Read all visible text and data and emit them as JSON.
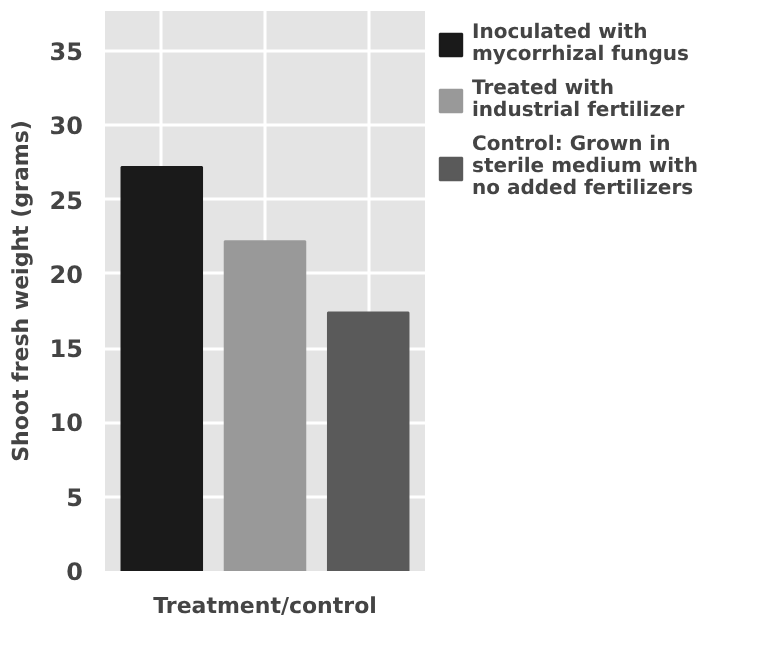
{
  "chart_data": {
    "type": "bar",
    "xlabel": "Treatment/control",
    "ylabel": "Shoot fresh weight (grams)",
    "categories": [
      null,
      null,
      null
    ],
    "series": [
      {
        "name": "Inoculated with mycorrhizal fungus",
        "color": "#1a1a1a",
        "values": [
          27.2,
          null,
          null
        ]
      },
      {
        "name": "Treated with industrial fertilizer",
        "color": "#999999",
        "values": [
          null,
          22.2,
          null
        ]
      },
      {
        "name": "Control: Grown in sterile medium with no added fertilizers",
        "color": "#5a5a5a",
        "values": [
          null,
          null,
          17.4
        ]
      }
    ],
    "ylim": [
      0,
      37.7
    ],
    "yticks": [
      0,
      5,
      10,
      15,
      20,
      25,
      30,
      35
    ],
    "grid": true,
    "legend": "right"
  }
}
